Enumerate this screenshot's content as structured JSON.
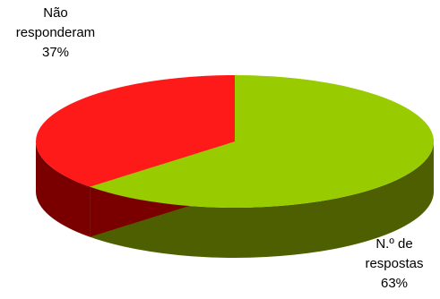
{
  "chart_data": {
    "type": "pie",
    "style": "3d",
    "slices": [
      {
        "name_lines": [
          "N.º de",
          "respostas"
        ],
        "percent_label": "63%",
        "value": 63,
        "color": "#99cc00",
        "side_color": "#4d5f00"
      },
      {
        "name_lines": [
          "Não",
          "responderam"
        ],
        "percent_label": "37%",
        "value": 37,
        "color": "#ff1a1a",
        "side_color": "#7a0000"
      }
    ],
    "legend": "none"
  }
}
